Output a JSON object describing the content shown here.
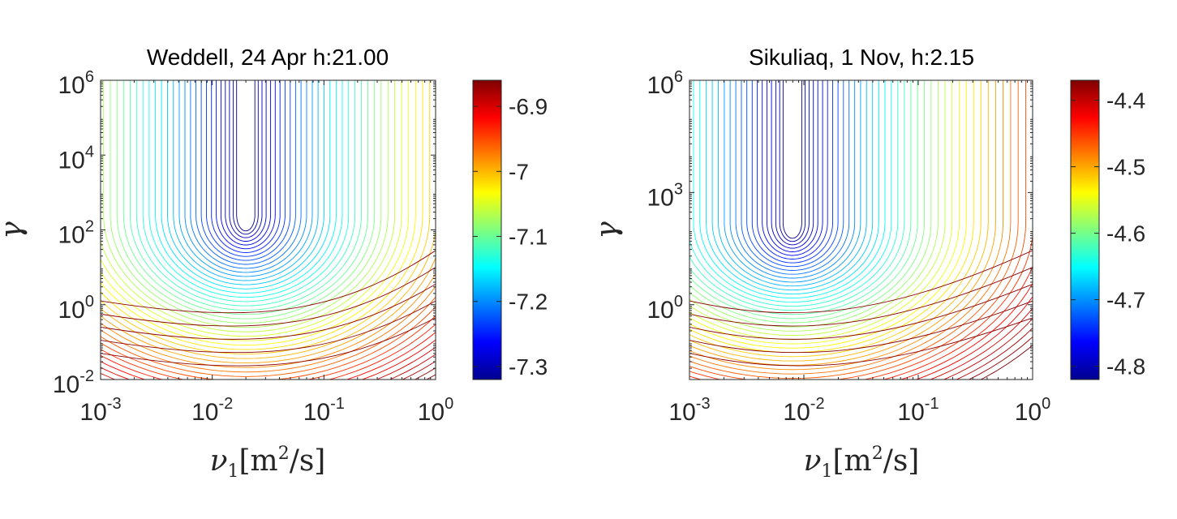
{
  "chart_data": [
    {
      "type": "contour",
      "title": "Weddell, 24 Apr h:21.00",
      "xlabel": "ν1[m2/s]",
      "ylabel": "γ",
      "xscale": "log",
      "yscale": "log",
      "xlim_exp": [
        -3,
        0
      ],
      "ylim_exp": [
        -2,
        6
      ],
      "x_ticks": [
        {
          "base": "10",
          "exp": "-3"
        },
        {
          "base": "10",
          "exp": "-2"
        },
        {
          "base": "10",
          "exp": "-1"
        },
        {
          "base": "10",
          "exp": "0"
        }
      ],
      "y_ticks": [
        {
          "base": "10",
          "exp": "-2"
        },
        {
          "base": "10",
          "exp": "0"
        },
        {
          "base": "10",
          "exp": "2"
        },
        {
          "base": "10",
          "exp": "4"
        },
        {
          "base": "10",
          "exp": "6"
        }
      ],
      "minimum": {
        "x_exp": -1.7,
        "y_exp": 2.4
      },
      "colorbar": {
        "colormap": "jet",
        "range": [
          -7.32,
          -6.86
        ],
        "ticks": [
          "-6.9",
          "-7",
          "-7.1",
          "-7.2",
          "-7.3"
        ],
        "tick_values": [
          -6.9,
          -7.0,
          -7.1,
          -7.2,
          -7.3
        ]
      }
    },
    {
      "type": "contour",
      "title": "Sikuliaq, 1 Nov, h:2.15",
      "xlabel": "ν1[m2/s]",
      "ylabel": "γ",
      "xscale": "log",
      "yscale": "log",
      "xlim_exp": [
        -3,
        0
      ],
      "ylim_exp": [
        -2,
        6
      ],
      "x_ticks": [
        {
          "base": "10",
          "exp": "-3"
        },
        {
          "base": "10",
          "exp": "-2"
        },
        {
          "base": "10",
          "exp": "-1"
        },
        {
          "base": "10",
          "exp": "0"
        }
      ],
      "y_ticks": [
        {
          "base": "10",
          "exp": "0"
        },
        {
          "base": "10",
          "exp": "3"
        },
        {
          "base": "10",
          "exp": "6"
        }
      ],
      "minimum": {
        "x_exp": -2.1,
        "y_exp": 2.2
      },
      "colorbar": {
        "colormap": "jet",
        "range": [
          -4.82,
          -4.37
        ],
        "ticks": [
          "-4.4",
          "-4.5",
          "-4.6",
          "-4.7",
          "-4.8"
        ],
        "tick_values": [
          -4.4,
          -4.5,
          -4.6,
          -4.7,
          -4.8
        ]
      }
    }
  ]
}
